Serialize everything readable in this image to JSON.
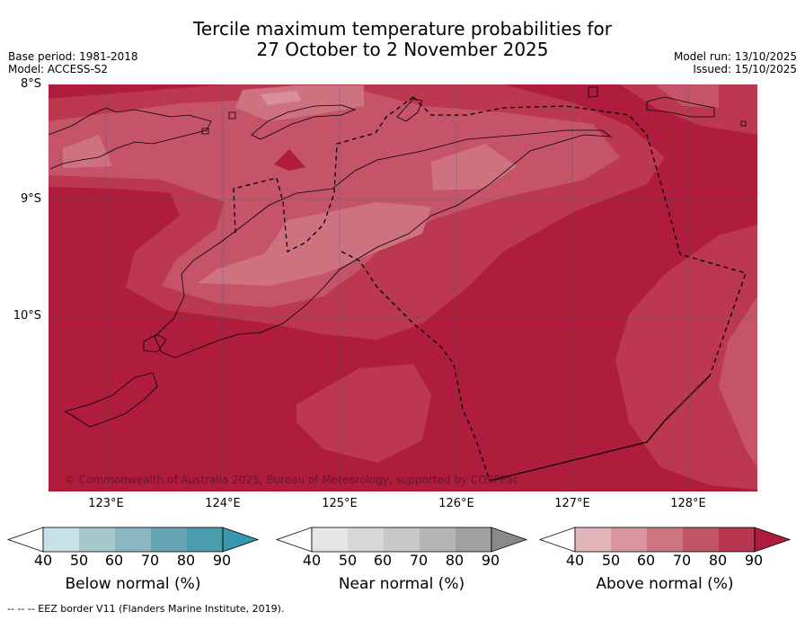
{
  "title_line1": "Tercile maximum temperature probabilities for",
  "title_line2": "27 October to 2 November 2025",
  "base_period": "Base period: 1981-2018",
  "model": "Model: ACCESS-S2",
  "model_run": "Model run: 13/10/2025",
  "issued": "Issued: 15/10/2025",
  "lat_labels": [
    "8°S",
    "9°S",
    "10°S"
  ],
  "lon_labels": [
    "123°E",
    "124°E",
    "125°E",
    "126°E",
    "127°E",
    "128°E"
  ],
  "copyright": "© Commonwealth of Australia 2025, Bureau of Meteorology, supported by COSPPac",
  "footnote": "--  --  -- EEZ border V11 (Flanders Marine Institute, 2019).",
  "colorbars": {
    "below": {
      "label": "Below normal (%)",
      "ticks": [
        "40",
        "50",
        "60",
        "70",
        "80",
        "90"
      ],
      "colors": [
        "#c6e2e8",
        "#a6c8cd",
        "#89b6c0",
        "#68a5b3",
        "#4a9cae",
        "#3598ac"
      ]
    },
    "near": {
      "label": "Near normal (%)",
      "ticks": [
        "40",
        "50",
        "60",
        "70",
        "80",
        "90"
      ],
      "colors": [
        "#e6e6e6",
        "#d8d8d8",
        "#c8c8c8",
        "#b5b5b5",
        "#a0a0a0",
        "#8a8a8a"
      ]
    },
    "above": {
      "label": "Above normal (%)",
      "ticks": [
        "40",
        "50",
        "60",
        "70",
        "80",
        "90"
      ],
      "colors": [
        "#e2b5bd",
        "#d8949f",
        "#cc7480",
        "#c05465",
        "#b6354f",
        "#b01c3b"
      ]
    }
  },
  "colors": {
    "p90": "#b01c3b",
    "p80": "#bb3850",
    "p70": "#c55468",
    "p60": "#cf7280",
    "p50": "#d88f9b",
    "graticule": "#555555",
    "coast": "#000000"
  }
}
